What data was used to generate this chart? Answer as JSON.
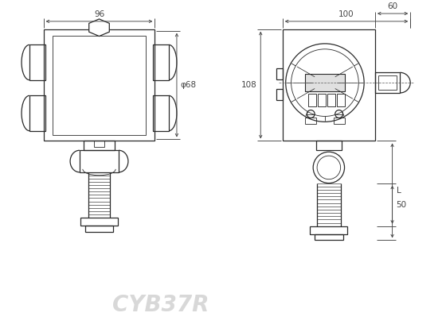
{
  "title": "CYB37R",
  "bg_color": "#ffffff",
  "line_color": "#2a2a2a",
  "dim_color": "#444444",
  "watermark_color": "#c8c8c8",
  "fig_width": 5.6,
  "fig_height": 4.18,
  "dpi": 100,
  "dim_96": "96",
  "dim_68": "φ68",
  "dim_100": "100",
  "dim_60": "60",
  "dim_108": "108",
  "dim_50": "50",
  "dim_L": "L"
}
